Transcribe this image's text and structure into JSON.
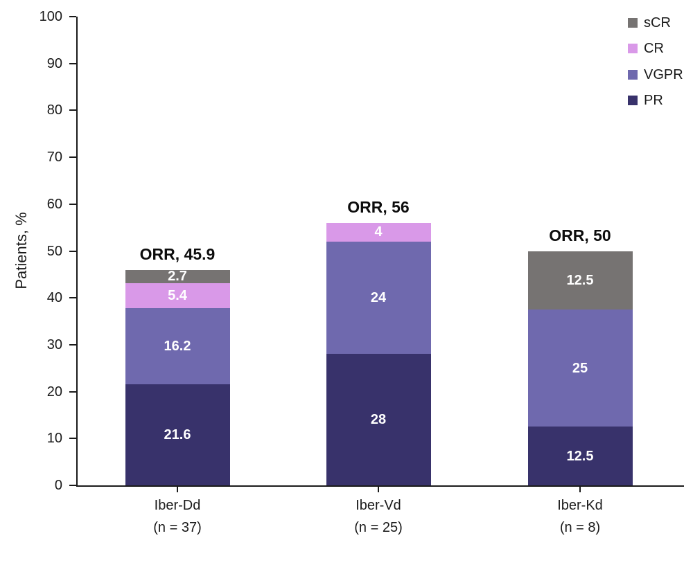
{
  "chart_data": {
    "type": "bar",
    "stacked": true,
    "title": "",
    "xlabel": "",
    "ylabel": "Patients, %",
    "ylim": [
      0,
      100
    ],
    "yticks": [
      0,
      10,
      20,
      30,
      40,
      50,
      60,
      70,
      80,
      90,
      100
    ],
    "grid": false,
    "legend_position": "top-right",
    "categories": [
      {
        "line1": "Iber-Dd",
        "line2": "(n = 37)"
      },
      {
        "line1": "Iber-Vd",
        "line2": "(n = 25)"
      },
      {
        "line1": "Iber-Kd",
        "line2": "(n = 8)"
      }
    ],
    "series": [
      {
        "name": "PR",
        "color": "#38326b",
        "values": [
          21.6,
          28,
          12.5
        ],
        "labels": [
          "21.6",
          "28",
          "12.5"
        ]
      },
      {
        "name": "VGPR",
        "color": "#6f69ae",
        "values": [
          16.2,
          24,
          25
        ],
        "labels": [
          "16.2",
          "24",
          "25"
        ]
      },
      {
        "name": "CR",
        "color": "#d999e8",
        "values": [
          5.4,
          4,
          0
        ],
        "labels": [
          "5.4",
          "4",
          ""
        ]
      },
      {
        "name": "sCR",
        "color": "#767372",
        "values": [
          2.7,
          0,
          12.5
        ],
        "labels": [
          "2.7",
          "",
          "12.5"
        ]
      }
    ],
    "totals": [
      {
        "label": "ORR, 45.9",
        "value": 45.9
      },
      {
        "label": "ORR, 56",
        "value": 56
      },
      {
        "label": "ORR, 50",
        "value": 50
      }
    ],
    "legend_order": [
      "sCR",
      "CR",
      "VGPR",
      "PR"
    ],
    "value_label_color": "#ffffff",
    "axis_color": "#1a1a1a"
  }
}
